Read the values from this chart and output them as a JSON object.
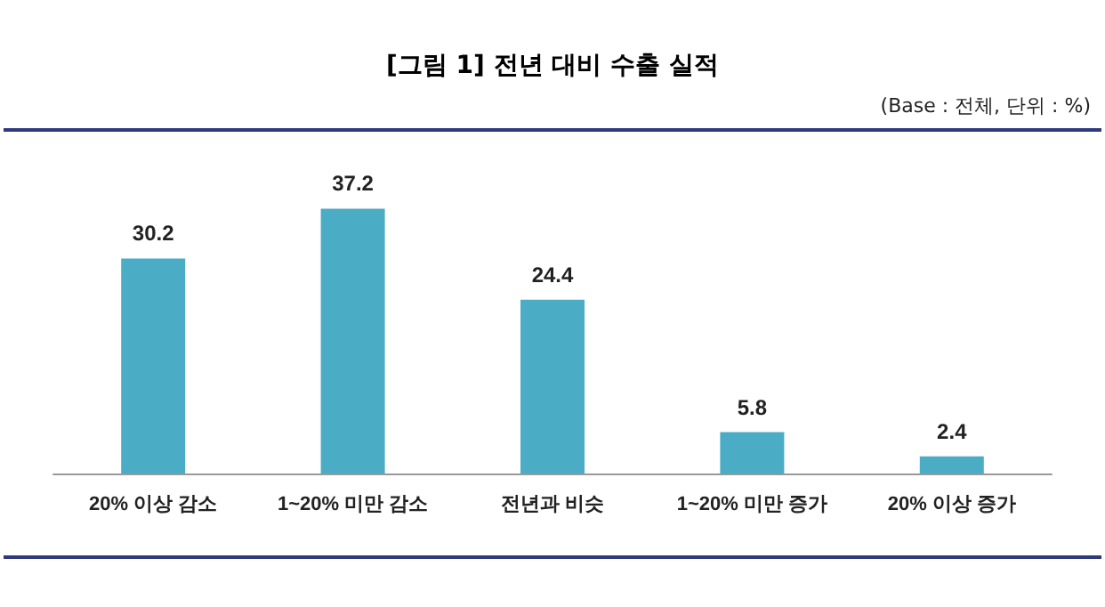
{
  "chart_data": {
    "type": "bar",
    "title": "[그림 1] 전년 대비 수출 실적",
    "annotations": [
      "(Base : 전체, 단위 : %)"
    ],
    "categories": [
      "20% 이상 감소",
      "1~20% 미만 감소",
      "전년과 비슷",
      "1~20% 미만 증가",
      "20% 이상 증가"
    ],
    "values": [
      30.2,
      37.2,
      24.4,
      5.8,
      2.4
    ],
    "color": "#4bacc6",
    "data_labels": true,
    "tick_labels": "x"
  }
}
